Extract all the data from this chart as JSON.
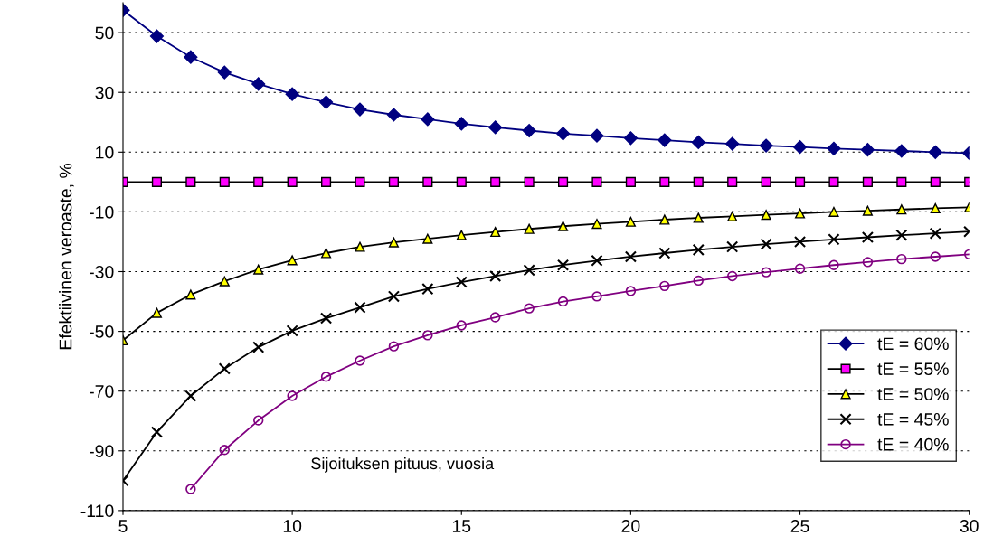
{
  "chart_data": {
    "type": "line",
    "xlabel": "Sijoituksen pituus, vuosia",
    "ylabel": "Efektiivinen veroaste, %",
    "x": [
      5,
      6,
      7,
      8,
      9,
      10,
      11,
      12,
      13,
      14,
      15,
      16,
      17,
      18,
      19,
      20,
      21,
      22,
      23,
      24,
      25,
      26,
      27,
      28,
      29,
      30
    ],
    "xlim": [
      5,
      30
    ],
    "xticks": [
      5,
      10,
      15,
      20,
      25,
      30
    ],
    "ylim": [
      -110,
      60
    ],
    "yticks": [
      -110,
      -90,
      -70,
      -50,
      -30,
      -10,
      10,
      30,
      50
    ],
    "grid": "y",
    "legend": "bottom right",
    "series": [
      {
        "name": "tE = 60%",
        "color": "#000080",
        "marker": "diamond",
        "values": [
          57.5,
          48.8,
          41.8,
          36.7,
          32.8,
          29.4,
          26.7,
          24.3,
          22.5,
          21,
          19.5,
          18.3,
          17.2,
          16.2,
          15.5,
          14.7,
          14,
          13.3,
          12.8,
          12.2,
          11.7,
          11.2,
          10.8,
          10.4,
          10,
          9.7
        ]
      },
      {
        "name": "tE = 55%",
        "color": "#ff00ff",
        "marker": "square",
        "values": [
          0,
          0,
          0,
          0,
          0,
          0,
          0,
          0,
          0,
          0,
          0,
          0,
          0,
          0,
          0,
          0,
          0,
          0,
          0,
          0,
          0,
          0,
          0,
          0,
          0,
          0
        ]
      },
      {
        "name": "tE = 50%",
        "color": "#ffff00",
        "marker": "triangle",
        "values": [
          -53,
          -43.8,
          -37.7,
          -33.2,
          -29.3,
          -26.2,
          -23.8,
          -21.7,
          -20.2,
          -19,
          -17.8,
          -16.7,
          -15.7,
          -14.8,
          -14,
          -13.3,
          -12.6,
          -12,
          -11.5,
          -11,
          -10.5,
          -10,
          -9.6,
          -9.2,
          -8.8,
          -8.5
        ]
      },
      {
        "name": "tE = 45%",
        "color": "#000000",
        "marker": "cross",
        "values": [
          -100,
          -83.7,
          -71.6,
          -62.5,
          -55.3,
          -49.8,
          -45.6,
          -42,
          -38.3,
          -35.8,
          -33.5,
          -31.5,
          -29.5,
          -27.8,
          -26.3,
          -25,
          -23.8,
          -22.7,
          -21.7,
          -20.8,
          -20,
          -19.2,
          -18.5,
          -17.8,
          -17.2,
          -16.6
        ]
      },
      {
        "name": "tE = 40%",
        "color": "#800080",
        "marker": "circle",
        "values": [
          null,
          null,
          -102.8,
          -89.7,
          -79.8,
          -71.6,
          -65.2,
          -59.8,
          -55,
          -51.3,
          -48,
          -45.3,
          -42.3,
          -40,
          -38.3,
          -36.5,
          -34.8,
          -33,
          -31.5,
          -30.2,
          -29,
          -27.8,
          -26.8,
          -25.8,
          -25,
          -24.2
        ]
      }
    ]
  }
}
